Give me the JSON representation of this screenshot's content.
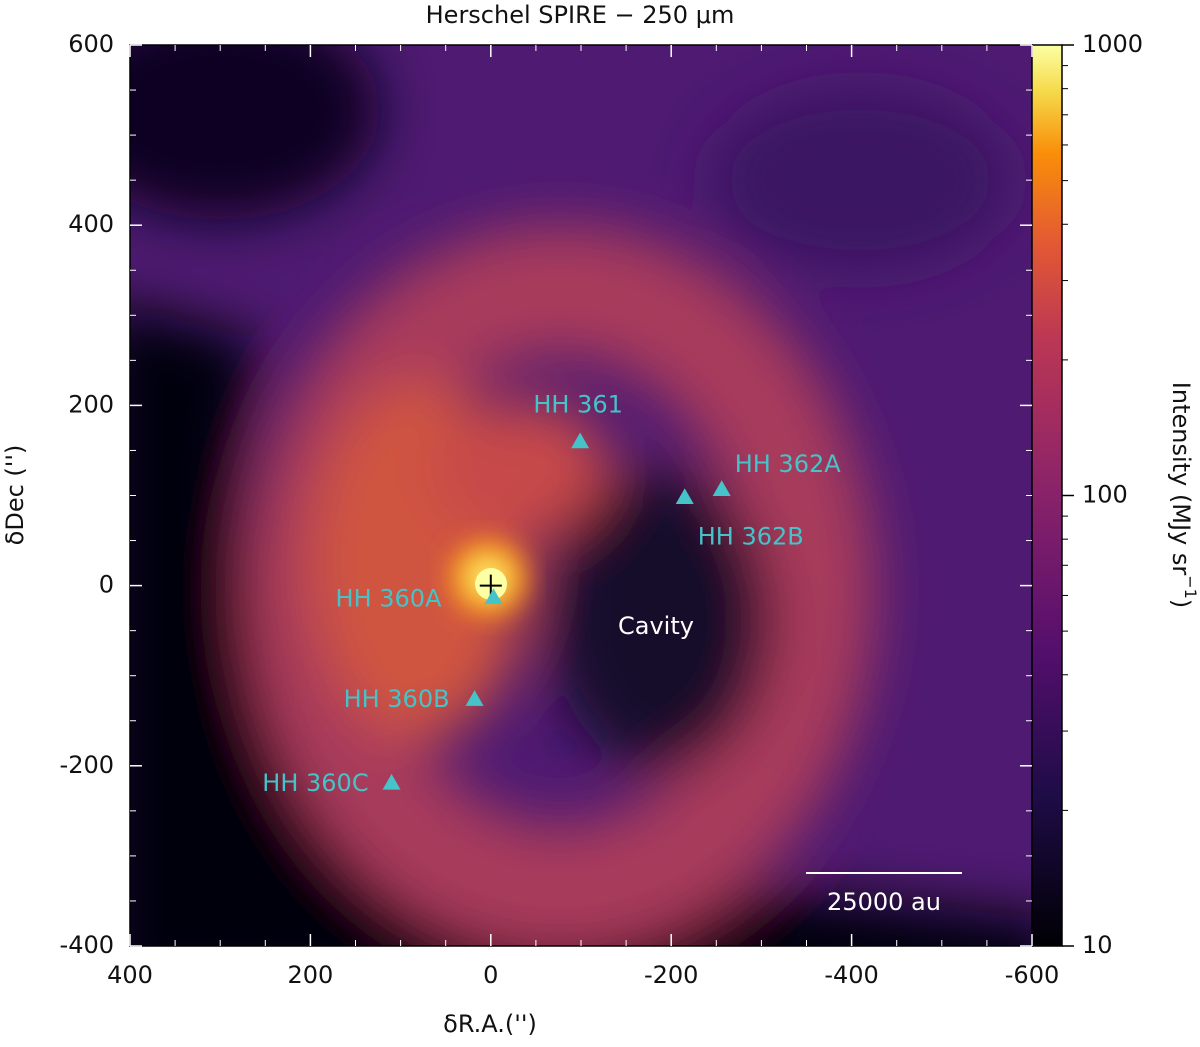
{
  "chart_data": {
    "type": "scatter",
    "title": "Herschel SPIRE − 250 μm",
    "xlabel": "δR.A.('')",
    "ylabel": "δDec ('')",
    "xlim": [
      400,
      -600
    ],
    "ylim": [
      -400,
      600
    ],
    "xticks": [
      400,
      200,
      0,
      -200,
      -400,
      -600
    ],
    "yticks": [
      -400,
      -200,
      0,
      200,
      400,
      600
    ],
    "xminorticks": [
      350,
      300,
      250,
      150,
      100,
      50,
      -50,
      -100,
      -150,
      -250,
      -300,
      -350,
      -450,
      -500,
      -550
    ],
    "yminorticks": [
      -350,
      -300,
      -250,
      -150,
      -100,
      -50,
      50,
      100,
      150,
      250,
      300,
      350,
      450,
      500,
      550
    ],
    "marker_color": "#46c3c8",
    "points": [
      {
        "label": "HH 361",
        "x": -99,
        "y": 160
      },
      {
        "label": "HH 362A",
        "x": -256,
        "y": 107
      },
      {
        "label": "HH 362B",
        "x": -215,
        "y": 98
      },
      {
        "label": "HH 360A",
        "x": -3,
        "y": -13
      },
      {
        "label": "HH 360B",
        "x": 18,
        "y": -126
      },
      {
        "label": "HH 360C",
        "x": 110,
        "y": -219
      }
    ],
    "source": {
      "x": 0,
      "y": 0
    },
    "annotations": {
      "cavity": "Cavity",
      "scale_bar": "25000 au"
    },
    "colorbar": {
      "label": [
        "Intensity (MJy sr",
        "−1",
        ")"
      ],
      "log": true,
      "lim": [
        10,
        1000
      ],
      "ticks": [
        10,
        100,
        1000
      ],
      "minorticks": [
        20,
        30,
        40,
        50,
        60,
        70,
        80,
        90,
        200,
        300,
        400,
        500,
        600,
        700,
        800,
        900
      ]
    }
  }
}
